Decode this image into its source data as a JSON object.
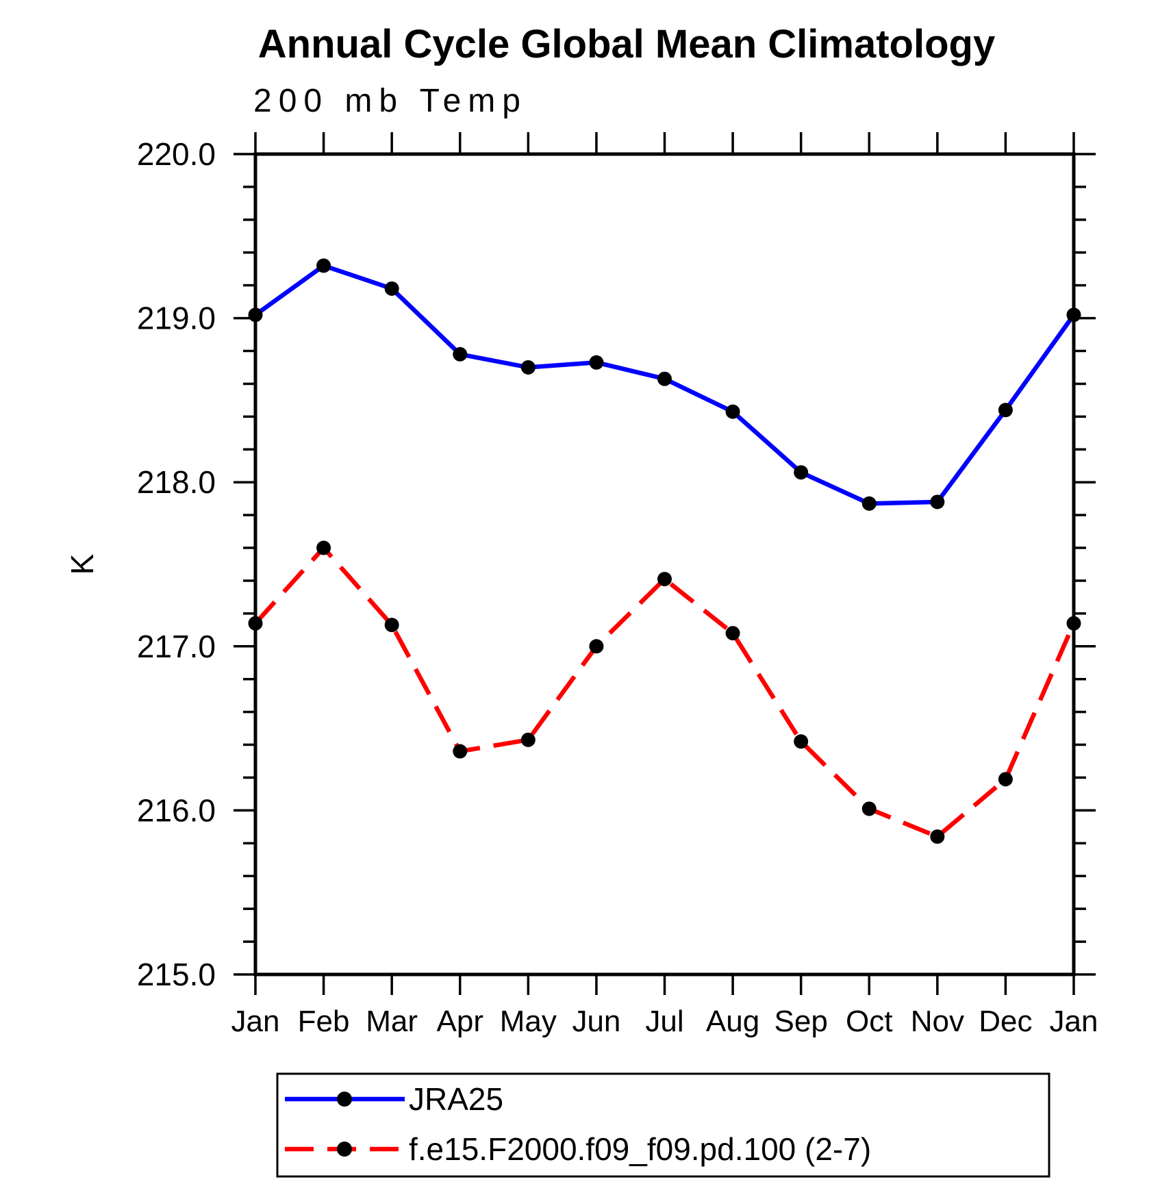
{
  "title": "Annual Cycle Global Mean Climatology",
  "subtitle": "200 mb Temp",
  "chart_data": {
    "type": "line",
    "title": "Annual Cycle Global Mean Climatology",
    "subtitle": "200 mb Temp",
    "ylabel": "K",
    "categories": [
      "Jan",
      "Feb",
      "Mar",
      "Apr",
      "May",
      "Jun",
      "Jul",
      "Aug",
      "Sep",
      "Oct",
      "Nov",
      "Dec",
      "Jan"
    ],
    "ylim": [
      215.0,
      220.0
    ],
    "ytick_step_major": 1.0,
    "ytick_step_minor": 0.2,
    "ytick_labels": [
      "220.0",
      "219.0",
      "218.0",
      "217.0",
      "216.0",
      "215.0"
    ],
    "grid": "off",
    "legend_position": "bottom-left",
    "marker": "filled-circle",
    "marker_color": "#000000",
    "series": [
      {
        "name": "JRA25",
        "color": "#0000ff",
        "style": "solid",
        "values": [
          219.02,
          219.32,
          219.18,
          218.78,
          218.7,
          218.73,
          218.63,
          218.43,
          218.06,
          217.87,
          217.88,
          218.44,
          219.02
        ]
      },
      {
        "name": "f.e15.F2000.f09_f09.pd.100 (2-7)",
        "color": "#ff0000",
        "style": "dashed",
        "values": [
          217.14,
          217.6,
          217.13,
          216.36,
          216.43,
          217.0,
          217.41,
          217.08,
          216.42,
          216.01,
          215.84,
          216.19,
          217.14
        ]
      }
    ]
  }
}
